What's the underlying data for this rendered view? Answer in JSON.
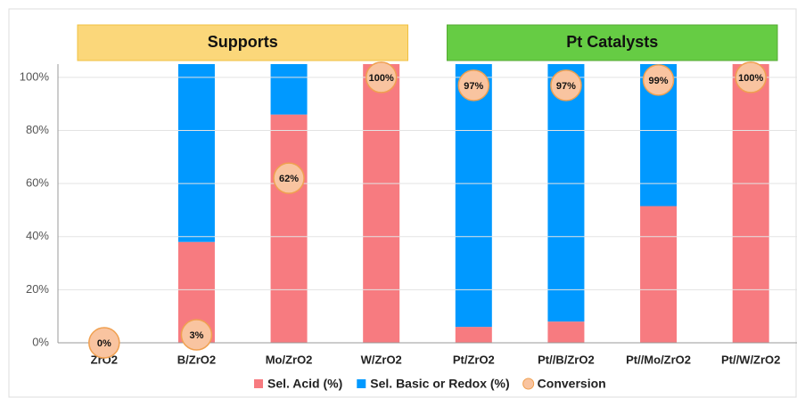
{
  "chart_data": {
    "type": "stacked_bar",
    "categories": [
      "ZrO2",
      "B/ZrO2",
      "Mo/ZrO2",
      "W/ZrO2",
      "Pt/ZrO2",
      "Pt//B/ZrO2",
      "Pt//Mo/ZrO2",
      "Pt//W/ZrO2"
    ],
    "series": [
      {
        "name": "Sel. Acid (%)",
        "color": "#f77b80",
        "values": [
          0,
          38,
          86,
          105,
          6,
          8,
          51.5,
          105
        ]
      },
      {
        "name": "Sel. Basic or Redox (%)",
        "color": "#0099ff",
        "values": [
          0,
          67,
          19,
          0,
          99,
          97,
          53.5,
          0
        ]
      }
    ],
    "markers": {
      "name": "Conversion",
      "color": "#f9c4a0",
      "edge": "#f0a050",
      "values": [
        0,
        3,
        62,
        100,
        97,
        97,
        99,
        100
      ],
      "value_labels": [
        "0%",
        "3%",
        "62%",
        "100%",
        "97%",
        "97%",
        "99%",
        "100%"
      ]
    },
    "groups": [
      {
        "label": "Supports",
        "from": 0,
        "to": 3,
        "color": "#fbd77a",
        "edge": "#f0c040"
      },
      {
        "label": "Pt Catalysts",
        "from": 4,
        "to": 7,
        "color": "#66cc44",
        "edge": "#55aa33"
      }
    ],
    "ylim": [
      0,
      105
    ],
    "yticks": [
      {
        "value": 0,
        "label": "0%"
      },
      {
        "value": 20,
        "label": "20%"
      },
      {
        "value": 40,
        "label": "40%"
      },
      {
        "value": 60,
        "label": "60%"
      },
      {
        "value": 80,
        "label": "80%"
      },
      {
        "value": 100,
        "label": "100%"
      }
    ],
    "grid": true,
    "legend": "bottom"
  }
}
